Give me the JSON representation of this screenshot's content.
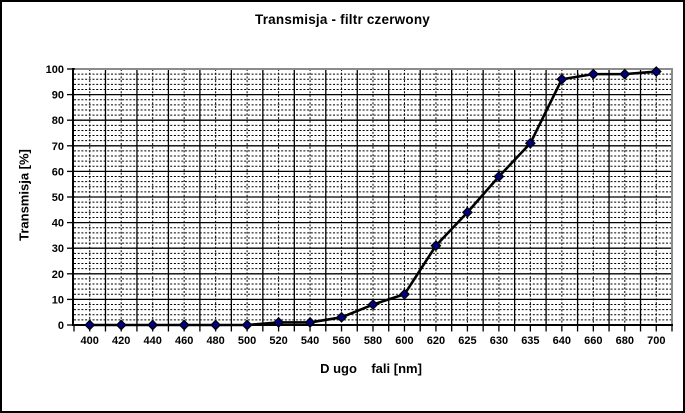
{
  "chart_data": {
    "type": "line",
    "title": "Transmisja - filtr czerwony",
    "xlabel": "D ugo    fali [nm]",
    "ylabel": "Transmisja [%]",
    "categories": [
      "400",
      "420",
      "440",
      "460",
      "480",
      "500",
      "520",
      "540",
      "560",
      "580",
      "600",
      "620",
      "625",
      "630",
      "635",
      "640",
      "660",
      "680",
      "700"
    ],
    "values": [
      0,
      0,
      0,
      0,
      0,
      0,
      1,
      1,
      3,
      8,
      12,
      31,
      44,
      58,
      71,
      96,
      98,
      98,
      99
    ],
    "ylim": [
      0,
      100
    ],
    "ytick_major": 10,
    "ytick_minor": 2,
    "xaxis_type": "category",
    "grid": "major solid + minor dashed, both axes",
    "legend": "none",
    "marker": "diamond",
    "colors": {
      "series_line": "#000000",
      "marker_fill": "#000080",
      "marker_edge": "#000000",
      "grid": "#000000",
      "axis": "#000000",
      "plot_border": "#8c8c8c",
      "background": "#ffffff",
      "text": "#000000"
    }
  }
}
